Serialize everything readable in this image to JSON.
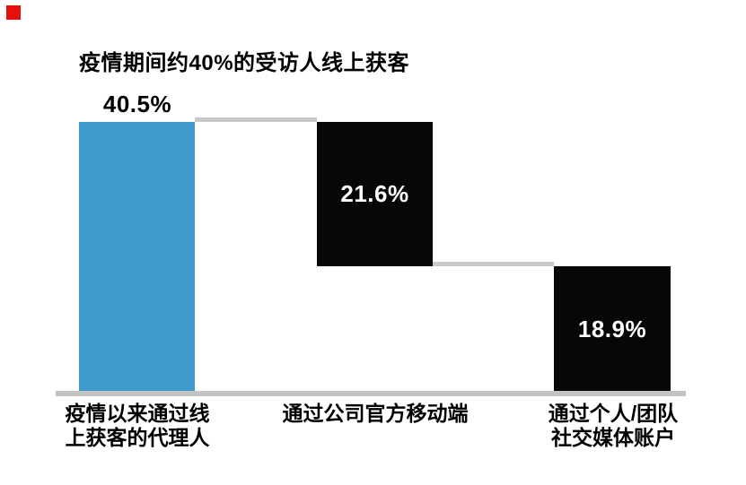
{
  "marker": {
    "name": "red-square",
    "color": "#e8100c"
  },
  "colors": {
    "bar_blue": "#3f9bce",
    "bar_black": "#070707",
    "connector_gray": "#c9c9c9",
    "baseline_gray": "#c3c3c3",
    "text_black": "#000000",
    "text_white": "#ffffff",
    "background": "#ffffff"
  },
  "chart_data": {
    "type": "bar",
    "style": "waterfall-cascade",
    "title": "疫情期间约40%的受访人线上获客",
    "categories": [
      "疫情以来通过线上获客的代理人",
      "通过公司官方移动端",
      "通过个人/团队社交媒体账户"
    ],
    "categories_lines": [
      [
        "疫情以来通过线",
        "上获客的代理人"
      ],
      [
        "通过公司官方移动端",
        ""
      ],
      [
        "通过个人/团队",
        "社交媒体账户"
      ]
    ],
    "values": [
      40.5,
      21.6,
      18.9
    ],
    "value_labels": [
      "40.5%",
      "21.6%",
      "18.9%"
    ],
    "value_label_positions": [
      "above",
      "inside",
      "inside"
    ],
    "bar_colors": [
      "#3f9bce",
      "#070707",
      "#070707"
    ],
    "ylim": [
      0,
      40.5
    ],
    "xlabel": "",
    "ylabel": "",
    "grid": false,
    "legend": false,
    "axes_shown": false,
    "note": "total 40.5% splits stepwise into 21.6% and 18.9%"
  }
}
